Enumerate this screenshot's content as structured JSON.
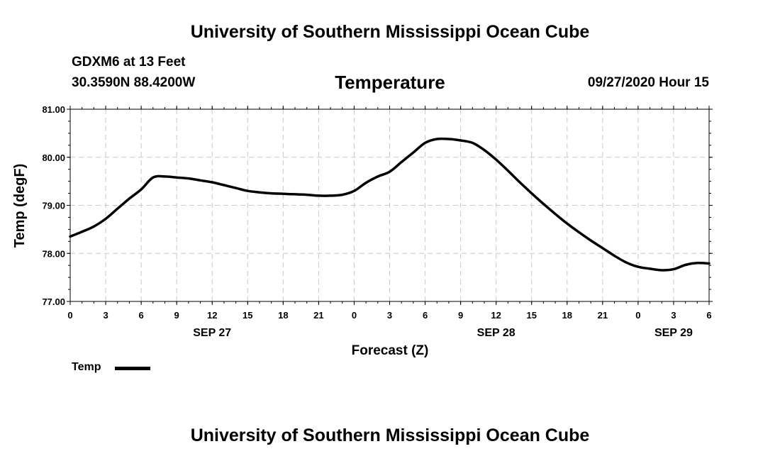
{
  "header": {
    "title": "University of Southern Mississippi Ocean Cube",
    "station": "GDXM6 at 13 Feet",
    "coords": "30.3590N 88.4200W",
    "datetime": "09/27/2020 Hour 15"
  },
  "footer": {
    "title": "University of Southern Mississippi Ocean Cube"
  },
  "legend": {
    "label": "Temp"
  },
  "chart_data": {
    "type": "line",
    "title": "Temperature",
    "xlabel": "Forecast (Z)",
    "ylabel": "Temp (degF)",
    "xlim": [
      0,
      54
    ],
    "ylim": [
      77.0,
      81.0
    ],
    "grid": true,
    "legend_position": "bottom-left",
    "y_ticks": [
      {
        "value": 77.0,
        "label": "77.00"
      },
      {
        "value": 78.0,
        "label": "78.00"
      },
      {
        "value": 79.0,
        "label": "79.00"
      },
      {
        "value": 80.0,
        "label": "80.00"
      },
      {
        "value": 81.0,
        "label": "81.00"
      }
    ],
    "x_ticks": [
      {
        "value": 0,
        "label": "0"
      },
      {
        "value": 3,
        "label": "3"
      },
      {
        "value": 6,
        "label": "6"
      },
      {
        "value": 9,
        "label": "9"
      },
      {
        "value": 12,
        "label": "12"
      },
      {
        "value": 15,
        "label": "15"
      },
      {
        "value": 18,
        "label": "18"
      },
      {
        "value": 21,
        "label": "21"
      },
      {
        "value": 24,
        "label": "0"
      },
      {
        "value": 27,
        "label": "3"
      },
      {
        "value": 30,
        "label": "6"
      },
      {
        "value": 33,
        "label": "9"
      },
      {
        "value": 36,
        "label": "12"
      },
      {
        "value": 39,
        "label": "15"
      },
      {
        "value": 42,
        "label": "18"
      },
      {
        "value": 45,
        "label": "21"
      },
      {
        "value": 48,
        "label": "0"
      },
      {
        "value": 51,
        "label": "3"
      },
      {
        "value": 54,
        "label": "6"
      }
    ],
    "date_labels": [
      {
        "value": 12,
        "label": "SEP 27"
      },
      {
        "value": 36,
        "label": "SEP 28"
      },
      {
        "value": 51,
        "label": "SEP 29"
      }
    ],
    "series": [
      {
        "name": "Temp",
        "color": "#000000",
        "x": [
          0,
          1,
          2,
          3,
          4,
          5,
          6,
          7,
          8,
          9,
          10,
          11,
          12,
          13,
          14,
          15,
          16,
          17,
          18,
          19,
          20,
          21,
          22,
          23,
          24,
          25,
          26,
          27,
          28,
          29,
          30,
          31,
          32,
          33,
          34,
          35,
          36,
          37,
          38,
          39,
          40,
          41,
          42,
          43,
          44,
          45,
          46,
          47,
          48,
          49,
          50,
          51,
          52,
          53,
          54
        ],
        "values": [
          78.35,
          78.45,
          78.56,
          78.72,
          78.93,
          79.14,
          79.33,
          79.58,
          79.6,
          79.58,
          79.56,
          79.52,
          79.48,
          79.42,
          79.36,
          79.3,
          79.27,
          79.25,
          79.24,
          79.23,
          79.22,
          79.2,
          79.2,
          79.22,
          79.3,
          79.47,
          79.6,
          79.7,
          79.9,
          80.1,
          80.3,
          80.38,
          80.38,
          80.35,
          80.3,
          80.15,
          79.95,
          79.72,
          79.48,
          79.25,
          79.03,
          78.82,
          78.62,
          78.44,
          78.27,
          78.11,
          77.95,
          77.81,
          77.72,
          77.68,
          77.65,
          77.67,
          77.76,
          77.8,
          77.79
        ]
      }
    ]
  }
}
